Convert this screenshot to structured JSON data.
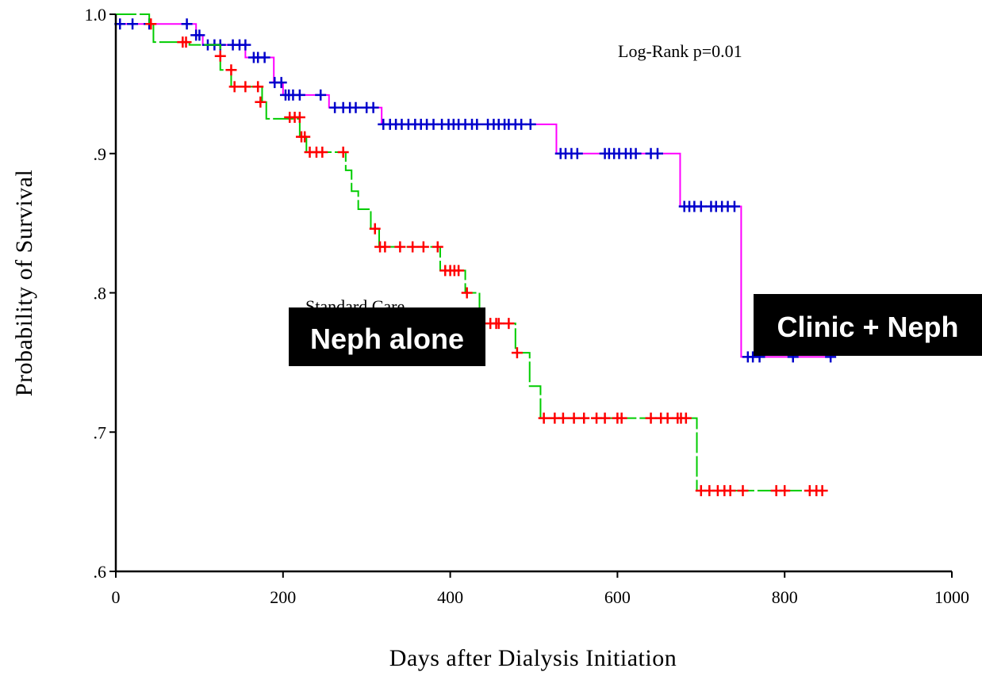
{
  "chart_data": {
    "type": "line",
    "subtype": "kaplan-meier",
    "xlabel": "Days after Dialysis Initiation",
    "ylabel": "Probability of Survival",
    "xlim": [
      0,
      1000
    ],
    "ylim": [
      0.6,
      1.0
    ],
    "x_ticks": [
      {
        "value": 0,
        "label": "0"
      },
      {
        "value": 200,
        "label": "200"
      },
      {
        "value": 400,
        "label": "400"
      },
      {
        "value": 600,
        "label": "600"
      },
      {
        "value": 800,
        "label": "800"
      },
      {
        "value": 1000,
        "label": "1000"
      }
    ],
    "y_ticks": [
      {
        "value": 0.6,
        "label": ".6"
      },
      {
        "value": 0.7,
        "label": ".7"
      },
      {
        "value": 0.8,
        "label": ".8"
      },
      {
        "value": 0.9,
        "label": ".9"
      },
      {
        "value": 1.0,
        "label": "1.0"
      }
    ],
    "grid": false,
    "annotations": [
      {
        "text": "Log-Rank p=0.01"
      },
      {
        "text": "Standard Care"
      }
    ],
    "series": [
      {
        "name": "Clinic + Neph",
        "line_color": "#ff00ff",
        "censor_color": "#0000cc",
        "line_style": "solid",
        "steps": [
          [
            0,
            0.993
          ],
          [
            96,
            0.985
          ],
          [
            104,
            0.978
          ],
          [
            155,
            0.969
          ],
          [
            189,
            0.951
          ],
          [
            200,
            0.942
          ],
          [
            255,
            0.933
          ],
          [
            318,
            0.921
          ],
          [
            527,
            0.9
          ],
          [
            675,
            0.862
          ],
          [
            748,
            0.754
          ],
          [
            860,
            0.754
          ]
        ],
        "censored": [
          [
            5,
            0.993
          ],
          [
            20,
            0.993
          ],
          [
            40,
            0.993
          ],
          [
            85,
            0.993
          ],
          [
            96,
            0.985
          ],
          [
            100,
            0.985
          ],
          [
            110,
            0.978
          ],
          [
            118,
            0.978
          ],
          [
            125,
            0.978
          ],
          [
            140,
            0.978
          ],
          [
            148,
            0.978
          ],
          [
            155,
            0.978
          ],
          [
            165,
            0.969
          ],
          [
            170,
            0.969
          ],
          [
            178,
            0.969
          ],
          [
            190,
            0.951
          ],
          [
            198,
            0.951
          ],
          [
            203,
            0.942
          ],
          [
            207,
            0.942
          ],
          [
            212,
            0.942
          ],
          [
            220,
            0.942
          ],
          [
            245,
            0.942
          ],
          [
            262,
            0.933
          ],
          [
            272,
            0.933
          ],
          [
            280,
            0.933
          ],
          [
            287,
            0.933
          ],
          [
            300,
            0.933
          ],
          [
            308,
            0.933
          ],
          [
            320,
            0.921
          ],
          [
            328,
            0.921
          ],
          [
            335,
            0.921
          ],
          [
            342,
            0.921
          ],
          [
            350,
            0.921
          ],
          [
            358,
            0.921
          ],
          [
            365,
            0.921
          ],
          [
            372,
            0.921
          ],
          [
            380,
            0.921
          ],
          [
            390,
            0.921
          ],
          [
            398,
            0.921
          ],
          [
            404,
            0.921
          ],
          [
            410,
            0.921
          ],
          [
            418,
            0.921
          ],
          [
            426,
            0.921
          ],
          [
            432,
            0.921
          ],
          [
            445,
            0.921
          ],
          [
            452,
            0.921
          ],
          [
            458,
            0.921
          ],
          [
            465,
            0.921
          ],
          [
            470,
            0.921
          ],
          [
            478,
            0.921
          ],
          [
            485,
            0.921
          ],
          [
            496,
            0.921
          ],
          [
            532,
            0.9
          ],
          [
            538,
            0.9
          ],
          [
            545,
            0.9
          ],
          [
            552,
            0.9
          ],
          [
            585,
            0.9
          ],
          [
            590,
            0.9
          ],
          [
            596,
            0.9
          ],
          [
            602,
            0.9
          ],
          [
            610,
            0.9
          ],
          [
            616,
            0.9
          ],
          [
            622,
            0.9
          ],
          [
            640,
            0.9
          ],
          [
            648,
            0.9
          ],
          [
            680,
            0.862
          ],
          [
            686,
            0.862
          ],
          [
            692,
            0.862
          ],
          [
            700,
            0.862
          ],
          [
            712,
            0.862
          ],
          [
            718,
            0.862
          ],
          [
            725,
            0.862
          ],
          [
            732,
            0.862
          ],
          [
            740,
            0.862
          ],
          [
            756,
            0.754
          ],
          [
            762,
            0.754
          ],
          [
            770,
            0.754
          ],
          [
            810,
            0.754
          ],
          [
            855,
            0.754
          ]
        ]
      },
      {
        "name": "Neph alone",
        "line_color": "#00cc00",
        "censor_color": "#ff0000",
        "line_style": "dashed",
        "steps": [
          [
            0,
            1.0
          ],
          [
            40,
            0.993
          ],
          [
            45,
            0.98
          ],
          [
            88,
            0.978
          ],
          [
            125,
            0.96
          ],
          [
            138,
            0.948
          ],
          [
            175,
            0.937
          ],
          [
            180,
            0.925
          ],
          [
            220,
            0.912
          ],
          [
            228,
            0.901
          ],
          [
            275,
            0.888
          ],
          [
            282,
            0.873
          ],
          [
            290,
            0.86
          ],
          [
            305,
            0.846
          ],
          [
            315,
            0.833
          ],
          [
            388,
            0.816
          ],
          [
            418,
            0.8
          ],
          [
            435,
            0.778
          ],
          [
            478,
            0.757
          ],
          [
            495,
            0.733
          ],
          [
            508,
            0.71
          ],
          [
            695,
            0.658
          ],
          [
            850,
            0.658
          ]
        ],
        "censored": [
          [
            42,
            0.993
          ],
          [
            80,
            0.98
          ],
          [
            84,
            0.98
          ],
          [
            125,
            0.97
          ],
          [
            138,
            0.96
          ],
          [
            142,
            0.948
          ],
          [
            155,
            0.948
          ],
          [
            170,
            0.948
          ],
          [
            173,
            0.937
          ],
          [
            208,
            0.926
          ],
          [
            214,
            0.926
          ],
          [
            220,
            0.926
          ],
          [
            222,
            0.912
          ],
          [
            226,
            0.912
          ],
          [
            232,
            0.901
          ],
          [
            240,
            0.901
          ],
          [
            247,
            0.901
          ],
          [
            272,
            0.901
          ],
          [
            310,
            0.846
          ],
          [
            316,
            0.833
          ],
          [
            322,
            0.833
          ],
          [
            340,
            0.833
          ],
          [
            355,
            0.833
          ],
          [
            368,
            0.833
          ],
          [
            385,
            0.833
          ],
          [
            394,
            0.816
          ],
          [
            400,
            0.816
          ],
          [
            405,
            0.816
          ],
          [
            410,
            0.816
          ],
          [
            420,
            0.8
          ],
          [
            448,
            0.778
          ],
          [
            455,
            0.778
          ],
          [
            458,
            0.778
          ],
          [
            470,
            0.778
          ],
          [
            480,
            0.757
          ],
          [
            512,
            0.71
          ],
          [
            525,
            0.71
          ],
          [
            535,
            0.71
          ],
          [
            548,
            0.71
          ],
          [
            560,
            0.71
          ],
          [
            575,
            0.71
          ],
          [
            585,
            0.71
          ],
          [
            600,
            0.71
          ],
          [
            605,
            0.71
          ],
          [
            640,
            0.71
          ],
          [
            652,
            0.71
          ],
          [
            660,
            0.71
          ],
          [
            672,
            0.71
          ],
          [
            676,
            0.71
          ],
          [
            682,
            0.71
          ],
          [
            700,
            0.658
          ],
          [
            710,
            0.658
          ],
          [
            720,
            0.658
          ],
          [
            728,
            0.658
          ],
          [
            735,
            0.658
          ],
          [
            750,
            0.658
          ],
          [
            790,
            0.658
          ],
          [
            800,
            0.658
          ],
          [
            830,
            0.658
          ],
          [
            838,
            0.658
          ],
          [
            845,
            0.658
          ]
        ]
      }
    ]
  }
}
